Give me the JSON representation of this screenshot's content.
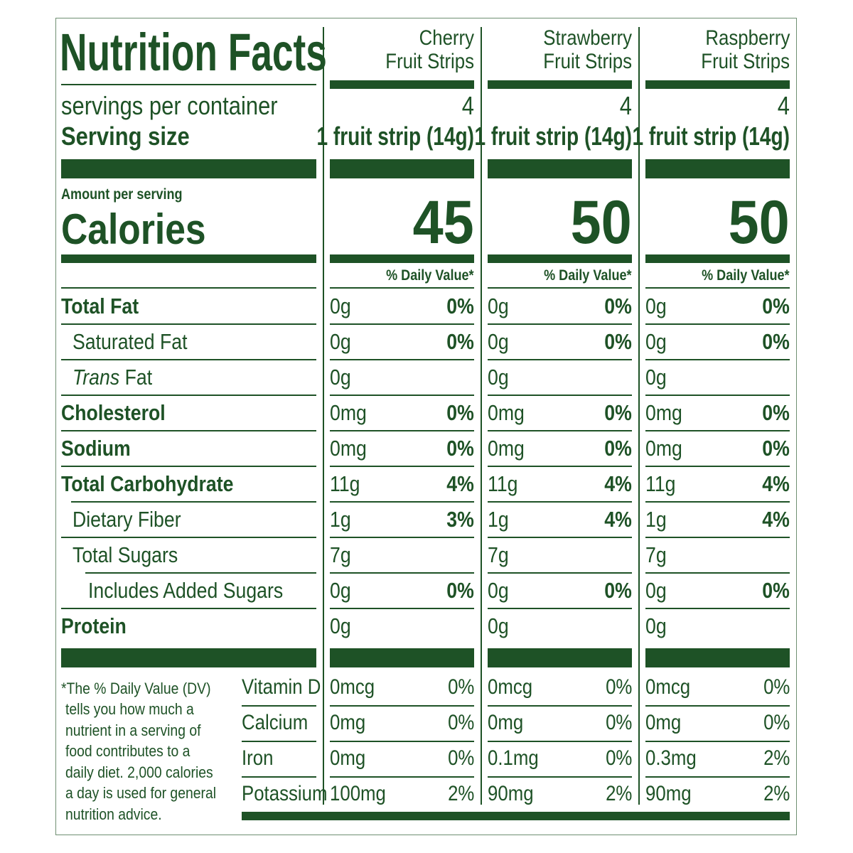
{
  "title": "Nutrition Facts",
  "servings_label": "servings per container",
  "serving_size_label": "Serving size",
  "amount_label": "Amount per serving",
  "calories_label": "Calories",
  "nutrient_labels": [
    {
      "pre": "",
      "name": "Total Fat",
      "bold": true,
      "indent": 0
    },
    {
      "pre": "",
      "name": "Saturated Fat",
      "bold": false,
      "indent": 1
    },
    {
      "pre": "Trans",
      "name": " Fat",
      "bold": false,
      "indent": 1
    },
    {
      "pre": "",
      "name": "Cholesterol",
      "bold": true,
      "indent": 0
    },
    {
      "pre": "",
      "name": "Sodium",
      "bold": true,
      "indent": 0
    },
    {
      "pre": "",
      "name": "Total Carbohydrate",
      "bold": true,
      "indent": 0
    },
    {
      "pre": "",
      "name": "Dietary Fiber",
      "bold": false,
      "indent": 1
    },
    {
      "pre": "",
      "name": "Total Sugars",
      "bold": false,
      "indent": 1
    },
    {
      "pre": "",
      "name": "Includes Added Sugars",
      "bold": false,
      "indent": 2
    },
    {
      "pre": "",
      "name": "Protein",
      "bold": true,
      "indent": 0
    }
  ],
  "vitamin_labels": [
    "Vitamin D",
    "Calcium",
    "Iron",
    "Potassium"
  ],
  "footnote": [
    "*The % Daily Value (DV)",
    "tells you how much a",
    "nutrient in a serving of",
    "food contributes to a",
    "daily diet. 2,000 calories",
    "a day is used for general",
    "nutrition advice."
  ],
  "products": [
    {
      "name": [
        "Cherry",
        "Fruit Strips"
      ],
      "servings": "4",
      "serving_size": "1 fruit strip (14g)",
      "calories": "45",
      "dv_label": "% Daily Value*",
      "nutrients": [
        [
          "0g",
          "0%"
        ],
        [
          "0g",
          "0%"
        ],
        [
          "0g",
          ""
        ],
        [
          "0mg",
          "0%"
        ],
        [
          "0mg",
          "0%"
        ],
        [
          "11g",
          "4%"
        ],
        [
          "1g",
          "3%"
        ],
        [
          "7g",
          ""
        ],
        [
          "0g",
          "0%"
        ],
        [
          "0g",
          ""
        ]
      ],
      "vitamins": [
        [
          "0mcg",
          "0%"
        ],
        [
          "0mg",
          "0%"
        ],
        [
          "0mg",
          "0%"
        ],
        [
          "100mg",
          "2%"
        ]
      ]
    },
    {
      "name": [
        "Strawberry",
        "Fruit Strips"
      ],
      "servings": "4",
      "serving_size": "1 fruit strip (14g)",
      "calories": "50",
      "dv_label": "% Daily Value*",
      "nutrients": [
        [
          "0g",
          "0%"
        ],
        [
          "0g",
          "0%"
        ],
        [
          "0g",
          ""
        ],
        [
          "0mg",
          "0%"
        ],
        [
          "0mg",
          "0%"
        ],
        [
          "11g",
          "4%"
        ],
        [
          "1g",
          "4%"
        ],
        [
          "7g",
          ""
        ],
        [
          "0g",
          "0%"
        ],
        [
          "0g",
          ""
        ]
      ],
      "vitamins": [
        [
          "0mcg",
          "0%"
        ],
        [
          "0mg",
          "0%"
        ],
        [
          "0.1mg",
          "0%"
        ],
        [
          "90mg",
          "2%"
        ]
      ]
    },
    {
      "name": [
        "Raspberry",
        "Fruit Strips"
      ],
      "servings": "4",
      "serving_size": "1 fruit strip (14g)",
      "calories": "50",
      "dv_label": "% Daily Value*",
      "nutrients": [
        [
          "0g",
          "0%"
        ],
        [
          "0g",
          "0%"
        ],
        [
          "0g",
          ""
        ],
        [
          "0mg",
          "0%"
        ],
        [
          "0mg",
          "0%"
        ],
        [
          "11g",
          "4%"
        ],
        [
          "1g",
          "4%"
        ],
        [
          "7g",
          ""
        ],
        [
          "0g",
          "0%"
        ],
        [
          "0g",
          ""
        ]
      ],
      "vitamins": [
        [
          "0mcg",
          "0%"
        ],
        [
          "0mg",
          "0%"
        ],
        [
          "0.3mg",
          "2%"
        ],
        [
          "90mg",
          "2%"
        ]
      ]
    }
  ],
  "colors": {
    "ink": "#1e5226",
    "border": "#6f8f72"
  }
}
